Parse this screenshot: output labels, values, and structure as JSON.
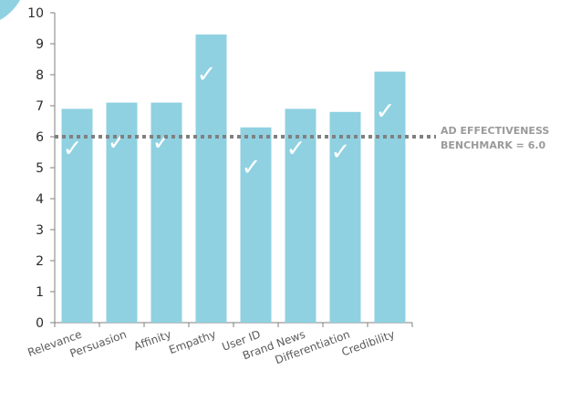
{
  "chart_data": {
    "type": "bar",
    "categories": [
      "Relevance",
      "Persuasion",
      "Affinity",
      "Empathy",
      "User ID",
      "Brand News",
      "Differentiation",
      "Credibility"
    ],
    "values": [
      6.9,
      7.1,
      7.1,
      9.3,
      6.3,
      6.9,
      6.8,
      8.1
    ],
    "ylim": [
      0,
      10
    ],
    "yticks": [
      0,
      1,
      2,
      3,
      4,
      5,
      6,
      7,
      8,
      9,
      10
    ],
    "grid": false,
    "benchmark": {
      "value": 6.0,
      "label_line1": "AD EFFECTIVENESS",
      "label_line2": "BENCHMARK = 6.0"
    },
    "check_glyph": "✓",
    "colors": {
      "bar": "#8fd1e1",
      "benchmark_line": "#808080",
      "axis": "#7f7f7f",
      "corner_accent": "#8fd1e1"
    }
  }
}
